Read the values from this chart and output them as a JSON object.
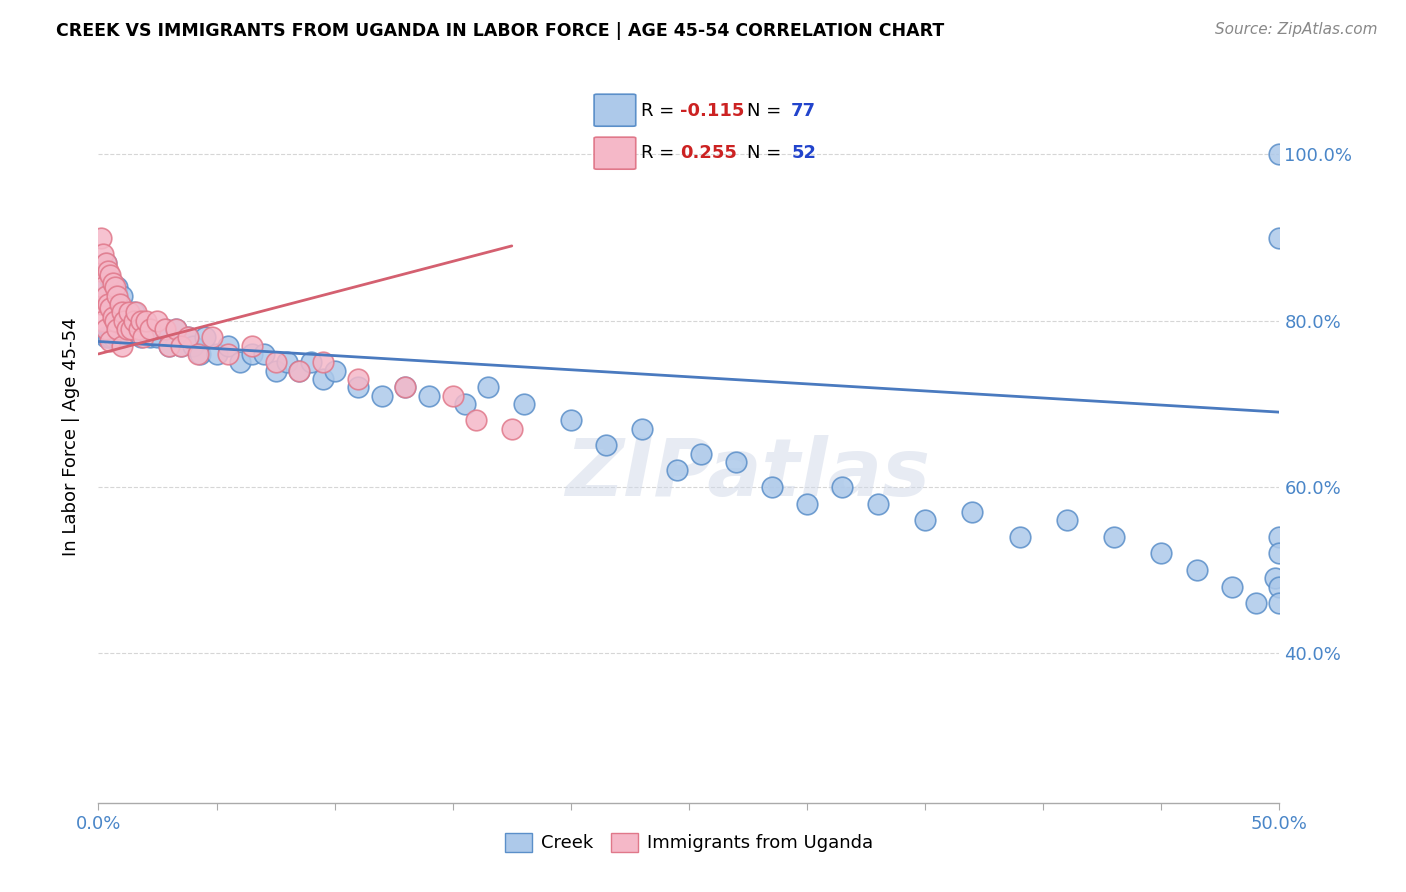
{
  "title": "CREEK VS IMMIGRANTS FROM UGANDA IN LABOR FORCE | AGE 45-54 CORRELATION CHART",
  "source": "Source: ZipAtlas.com",
  "ylabel": "In Labor Force | Age 45-54",
  "xlim": [
    0.0,
    0.5
  ],
  "ylim": [
    0.22,
    1.1
  ],
  "creek_color": "#adc9ea",
  "creek_edge_color": "#5b8fc9",
  "uganda_color": "#f5b8c8",
  "uganda_edge_color": "#e0788a",
  "creek_line_color": "#4a7abf",
  "uganda_line_color": "#d46070",
  "creek_R": -0.115,
  "creek_N": 77,
  "uganda_R": 0.255,
  "uganda_N": 52,
  "watermark": "ZIPatlas",
  "creek_scatter_x": [
    0.002,
    0.003,
    0.003,
    0.004,
    0.004,
    0.005,
    0.005,
    0.006,
    0.006,
    0.007,
    0.007,
    0.008,
    0.008,
    0.009,
    0.01,
    0.01,
    0.011,
    0.012,
    0.013,
    0.015,
    0.016,
    0.018,
    0.02,
    0.022,
    0.025,
    0.028,
    0.03,
    0.033,
    0.035,
    0.038,
    0.04,
    0.043,
    0.045,
    0.05,
    0.055,
    0.06,
    0.065,
    0.07,
    0.075,
    0.08,
    0.085,
    0.09,
    0.095,
    0.1,
    0.11,
    0.12,
    0.13,
    0.14,
    0.155,
    0.165,
    0.18,
    0.2,
    0.215,
    0.23,
    0.245,
    0.255,
    0.27,
    0.285,
    0.3,
    0.315,
    0.33,
    0.35,
    0.37,
    0.39,
    0.41,
    0.43,
    0.45,
    0.465,
    0.48,
    0.49,
    0.498,
    0.5,
    0.5,
    0.5,
    0.5,
    0.5,
    0.5
  ],
  "creek_scatter_y": [
    0.84,
    0.87,
    0.78,
    0.83,
    0.78,
    0.85,
    0.78,
    0.83,
    0.78,
    0.83,
    0.8,
    0.84,
    0.78,
    0.82,
    0.83,
    0.78,
    0.81,
    0.8,
    0.79,
    0.81,
    0.8,
    0.78,
    0.79,
    0.78,
    0.78,
    0.79,
    0.77,
    0.79,
    0.77,
    0.78,
    0.77,
    0.76,
    0.78,
    0.76,
    0.77,
    0.75,
    0.76,
    0.76,
    0.74,
    0.75,
    0.74,
    0.75,
    0.73,
    0.74,
    0.72,
    0.71,
    0.72,
    0.71,
    0.7,
    0.72,
    0.7,
    0.68,
    0.65,
    0.67,
    0.62,
    0.64,
    0.63,
    0.6,
    0.58,
    0.6,
    0.58,
    0.56,
    0.57,
    0.54,
    0.56,
    0.54,
    0.52,
    0.5,
    0.48,
    0.46,
    0.49,
    0.54,
    0.48,
    0.46,
    0.52,
    1.0,
    0.9
  ],
  "uganda_scatter_x": [
    0.001,
    0.001,
    0.001,
    0.002,
    0.002,
    0.002,
    0.003,
    0.003,
    0.003,
    0.004,
    0.004,
    0.005,
    0.005,
    0.005,
    0.006,
    0.006,
    0.007,
    0.007,
    0.008,
    0.008,
    0.009,
    0.01,
    0.01,
    0.011,
    0.012,
    0.013,
    0.014,
    0.015,
    0.016,
    0.017,
    0.018,
    0.019,
    0.02,
    0.022,
    0.025,
    0.028,
    0.03,
    0.033,
    0.035,
    0.038,
    0.042,
    0.048,
    0.055,
    0.065,
    0.075,
    0.085,
    0.095,
    0.11,
    0.13,
    0.15,
    0.16,
    0.175
  ],
  "uganda_scatter_y": [
    0.9,
    0.86,
    0.82,
    0.88,
    0.84,
    0.8,
    0.87,
    0.83,
    0.79,
    0.86,
    0.82,
    0.855,
    0.815,
    0.775,
    0.845,
    0.805,
    0.84,
    0.8,
    0.83,
    0.79,
    0.82,
    0.81,
    0.77,
    0.8,
    0.79,
    0.81,
    0.79,
    0.8,
    0.81,
    0.79,
    0.8,
    0.78,
    0.8,
    0.79,
    0.8,
    0.79,
    0.77,
    0.79,
    0.77,
    0.78,
    0.76,
    0.78,
    0.76,
    0.77,
    0.75,
    0.74,
    0.75,
    0.73,
    0.72,
    0.71,
    0.68,
    0.67
  ],
  "creek_trendline_x": [
    0.0,
    0.5
  ],
  "creek_trendline_y": [
    0.775,
    0.69
  ],
  "uganda_trendline_x": [
    0.0,
    0.175
  ],
  "uganda_trendline_y": [
    0.76,
    0.89
  ]
}
